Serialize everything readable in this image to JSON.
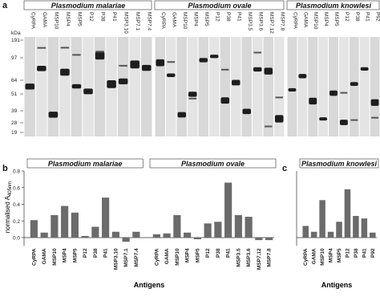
{
  "blot": {
    "label": "a",
    "kda_label": "kDa",
    "markers": [
      191,
      97,
      64,
      51,
      39,
      28,
      19
    ],
    "groups": [
      {
        "name": "Plasmodium malariae",
        "lanes": [
          "CyRPA",
          "GAMA",
          "MSP10",
          "MSP4",
          "MSP5",
          "P12",
          "P38",
          "P41",
          "MSP3.10",
          "MSP7.1",
          "MSP7.4"
        ]
      },
      {
        "name": "Plasmodium ovale",
        "lanes": [
          "CyRPA",
          "GAMA",
          "MSP10",
          "MSP4",
          "MSP5",
          "P12",
          "P38",
          "P41",
          "MSP3.5",
          "MSP3.6",
          "MSP7.12",
          "MSP7.8"
        ]
      },
      {
        "name": "Plasmodium knowlesi",
        "lanes": [
          "CyRPA",
          "GAMA",
          "MSP10",
          "MSP4",
          "MSP5",
          "P12",
          "P38",
          "P41",
          "P92"
        ]
      }
    ]
  },
  "chart_data": [
    {
      "type": "bar",
      "panel": "b",
      "ylabel": "normalised A",
      "ylabel_sub": "405nm",
      "xlabel": "Antigens",
      "color": "#6b6b6b",
      "ylim": [
        -0.1,
        0.8
      ],
      "yticks": [
        {
          "value": 0,
          "label": "0.0"
        },
        {
          "value": 0.2,
          "label": "0.2"
        },
        {
          "value": 0.4,
          "label": "0.4"
        },
        {
          "value": 0.6,
          "label": "0.6"
        },
        {
          "value": 0.8,
          "label": "0.8"
        }
      ],
      "groups": [
        {
          "name": "Plasmodium malariae",
          "categories": [
            "CyRPA",
            "GAMA",
            "MSP10",
            "MSP4",
            "MSP5",
            "P12",
            "P38",
            "P41",
            "MSP3.10",
            "MSP7.1",
            "MSP7.4"
          ],
          "values": [
            0.21,
            0.06,
            0.27,
            0.38,
            0.3,
            0.02,
            0.13,
            0.48,
            0.07,
            -0.05,
            0.07
          ]
        },
        {
          "name": "Plasmodium ovale",
          "categories": [
            "CyRPA",
            "GAMA",
            "MSP10",
            "MSP4",
            "MSP5",
            "P12",
            "P38",
            "P41",
            "MSP3.5",
            "MSP3.6",
            "MSP7.12",
            "MSP7.8"
          ],
          "values": [
            0.04,
            0.05,
            0.27,
            0.06,
            -0.02,
            0.17,
            0.19,
            0.66,
            0.27,
            0.25,
            -0.03,
            -0.03
          ]
        }
      ]
    },
    {
      "type": "bar",
      "panel": "c",
      "xlabel": "Antigens",
      "color": "#6b6b6b",
      "ylim": [
        -0.1,
        0.8
      ],
      "groups": [
        {
          "name": "Plasmodium knowlesi",
          "categories": [
            "CyRPA",
            "GAMA",
            "MSP10",
            "MSP4",
            "MSP5",
            "P12",
            "P38",
            "P41",
            "P92"
          ],
          "values": [
            0.14,
            0.07,
            0.45,
            0.07,
            0.19,
            0.58,
            0.26,
            0.23,
            0.06
          ]
        }
      ]
    }
  ]
}
